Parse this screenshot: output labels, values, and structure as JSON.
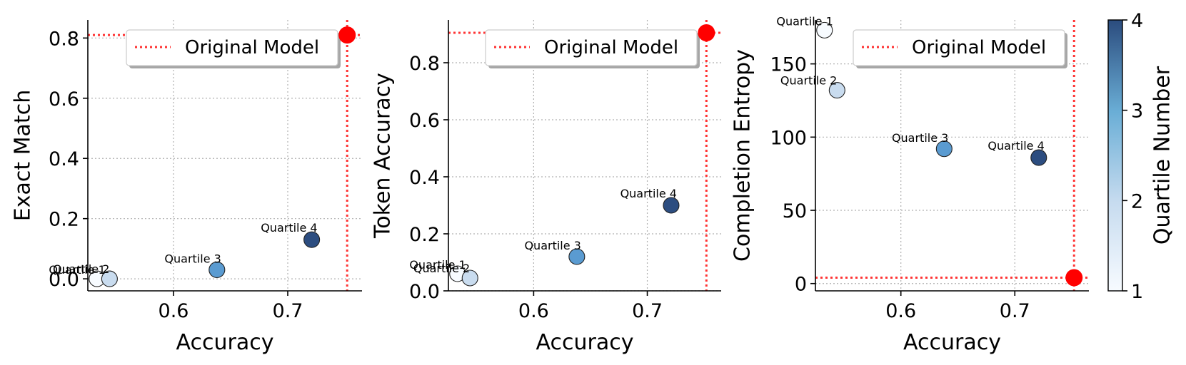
{
  "chart_data": [
    {
      "type": "scatter",
      "xlabel": "Accuracy",
      "ylabel": "Exact Match",
      "xlim": [
        0.525,
        0.765
      ],
      "ylim": [
        -0.04,
        0.86
      ],
      "xticks": [
        0.6,
        0.7
      ],
      "xtick_labels": [
        "0.6",
        "0.7"
      ],
      "yticks": [
        0.0,
        0.2,
        0.4,
        0.6,
        0.8
      ],
      "ytick_labels": [
        "0.0",
        "0.2",
        "0.4",
        "0.6",
        "0.8"
      ],
      "grid": true,
      "legend": {
        "label": "Original Model",
        "placement": "top-right"
      },
      "original_model": {
        "x": 0.752,
        "y": 0.81
      },
      "points": [
        {
          "label": "Quartile 1",
          "x": 0.533,
          "y": 0.0,
          "quartile": 1
        },
        {
          "label": "Quartile 2",
          "x": 0.544,
          "y": 0.0,
          "quartile": 2
        },
        {
          "label": "Quartile 3",
          "x": 0.638,
          "y": 0.03,
          "quartile": 3
        },
        {
          "label": "Quartile 4",
          "x": 0.721,
          "y": 0.13,
          "quartile": 4
        }
      ]
    },
    {
      "type": "scatter",
      "xlabel": "Accuracy",
      "ylabel": "Token Accuracy",
      "xlim": [
        0.525,
        0.765
      ],
      "ylim": [
        0.0,
        0.95
      ],
      "xticks": [
        0.6,
        0.7
      ],
      "xtick_labels": [
        "0.6",
        "0.7"
      ],
      "yticks": [
        0.0,
        0.2,
        0.4,
        0.6,
        0.8
      ],
      "ytick_labels": [
        "0.0",
        "0.2",
        "0.4",
        "0.6",
        "0.8"
      ],
      "grid": true,
      "legend": {
        "label": "Original Model",
        "placement": "top-right"
      },
      "original_model": {
        "x": 0.752,
        "y": 0.905
      },
      "points": [
        {
          "label": "Quartile 1",
          "x": 0.533,
          "y": 0.06,
          "quartile": 1
        },
        {
          "label": "Quartile 2",
          "x": 0.544,
          "y": 0.045,
          "quartile": 2
        },
        {
          "label": "Quartile 3",
          "x": 0.638,
          "y": 0.12,
          "quartile": 3
        },
        {
          "label": "Quartile 4",
          "x": 0.721,
          "y": 0.3,
          "quartile": 4
        }
      ]
    },
    {
      "type": "scatter",
      "xlabel": "Accuracy",
      "ylabel": "Completion Entropy",
      "xlim": [
        0.525,
        0.765
      ],
      "ylim": [
        -5,
        180
      ],
      "xticks": [
        0.6,
        0.7
      ],
      "xtick_labels": [
        "0.6",
        "0.7"
      ],
      "yticks": [
        0,
        50,
        100,
        150
      ],
      "ytick_labels": [
        "0",
        "50",
        "100",
        "150"
      ],
      "grid": true,
      "legend": {
        "label": "Original Model",
        "placement": "top-right"
      },
      "original_model": {
        "x": 0.752,
        "y": 4
      },
      "points": [
        {
          "label": "Quartile 1",
          "x": 0.533,
          "y": 173,
          "quartile": 1
        },
        {
          "label": "Quartile 2",
          "x": 0.544,
          "y": 132,
          "quartile": 2
        },
        {
          "label": "Quartile 3",
          "x": 0.638,
          "y": 92,
          "quartile": 3
        },
        {
          "label": "Quartile 4",
          "x": 0.721,
          "y": 86,
          "quartile": 4
        }
      ]
    }
  ],
  "colorbar": {
    "label": "Quartile Number",
    "min": 1,
    "max": 4,
    "ticks": [
      1,
      2,
      3,
      4
    ],
    "tick_labels": [
      "1",
      "2",
      "3",
      "4"
    ],
    "colors": [
      "#f7fbff",
      "#c6dbef",
      "#6baed6",
      "#2171b5",
      "#2b4c7e"
    ]
  },
  "colors": {
    "original_model": "#ff0000",
    "reference_line": "#ff3333",
    "quartile_1": "#f7fbff",
    "quartile_2": "#c9dcef",
    "quartile_3": "#5a9bd1",
    "quartile_4": "#2c4d80"
  }
}
